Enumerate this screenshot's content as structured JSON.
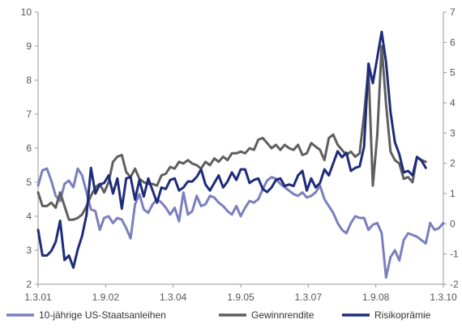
{
  "chart_data": {
    "type": "line",
    "title": "",
    "xlabel": "",
    "ylabel_left": "",
    "ylabel_right": "",
    "x_ticks": [
      "1.3.01",
      "1.9.02",
      "1.3.04",
      "1.9.05",
      "1.3.07",
      "1.9.08",
      "1.3.10"
    ],
    "left_axis": {
      "min": 2,
      "max": 10,
      "ticks": [
        2,
        3,
        4,
        5,
        6,
        7,
        8,
        9,
        10
      ]
    },
    "right_axis": {
      "min": -2,
      "max": 7,
      "ticks_shown": [
        "-2",
        "-1",
        "0",
        "1",
        "2",
        "3",
        "4",
        "5",
        "6",
        "7"
      ]
    },
    "grid": false,
    "legend_position": "bottom",
    "series": [
      {
        "name": "10-jährige US-Staatsanleihen",
        "axis": "left",
        "color": "#7b7fbd",
        "points": [
          [
            0,
            4.9
          ],
          [
            1,
            5.35
          ],
          [
            2,
            5.4
          ],
          [
            3,
            5.05
          ],
          [
            4,
            4.6
          ],
          [
            5,
            4.45
          ],
          [
            6,
            4.95
          ],
          [
            7,
            5.05
          ],
          [
            8,
            4.85
          ],
          [
            9,
            5.4
          ],
          [
            10,
            5.2
          ],
          [
            11,
            4.7
          ],
          [
            12,
            4.2
          ],
          [
            13,
            4.15
          ],
          [
            14,
            3.6
          ],
          [
            15,
            3.95
          ],
          [
            16,
            4.0
          ],
          [
            17,
            3.8
          ],
          [
            18,
            3.95
          ],
          [
            19,
            3.9
          ],
          [
            20,
            3.65
          ],
          [
            21,
            3.35
          ],
          [
            22,
            4.35
          ],
          [
            23,
            4.65
          ],
          [
            24,
            4.2
          ],
          [
            25,
            4.1
          ],
          [
            26,
            4.35
          ],
          [
            27,
            4.5
          ],
          [
            28,
            4.4
          ],
          [
            29,
            4.25
          ],
          [
            30,
            4.05
          ],
          [
            31,
            4.25
          ],
          [
            32,
            3.85
          ],
          [
            33,
            4.7
          ],
          [
            34,
            4.05
          ],
          [
            35,
            4.15
          ],
          [
            36,
            4.6
          ],
          [
            37,
            4.3
          ],
          [
            38,
            4.35
          ],
          [
            39,
            4.6
          ],
          [
            40,
            4.55
          ],
          [
            41,
            4.4
          ],
          [
            42,
            4.3
          ],
          [
            43,
            4.15
          ],
          [
            44,
            4.05
          ],
          [
            45,
            4.3
          ],
          [
            46,
            4.0
          ],
          [
            47,
            4.25
          ],
          [
            48,
            4.45
          ],
          [
            49,
            4.4
          ],
          [
            50,
            4.5
          ],
          [
            51,
            4.8
          ],
          [
            52,
            5.05
          ],
          [
            53,
            5.15
          ],
          [
            54,
            5.1
          ],
          [
            55,
            4.95
          ],
          [
            56,
            4.85
          ],
          [
            57,
            4.75
          ],
          [
            58,
            4.65
          ],
          [
            59,
            4.6
          ],
          [
            60,
            4.7
          ],
          [
            61,
            4.55
          ],
          [
            62,
            4.6
          ],
          [
            63,
            4.7
          ],
          [
            64,
            4.9
          ],
          [
            65,
            4.5
          ],
          [
            66,
            4.3
          ],
          [
            67,
            4.1
          ],
          [
            68,
            3.8
          ],
          [
            69,
            3.6
          ],
          [
            70,
            3.5
          ],
          [
            71,
            3.8
          ],
          [
            72,
            4.0
          ],
          [
            73,
            3.95
          ],
          [
            74,
            3.95
          ],
          [
            75,
            3.6
          ],
          [
            76,
            3.75
          ],
          [
            77,
            3.8
          ],
          [
            78,
            3.5
          ],
          [
            79,
            2.2
          ],
          [
            80,
            2.8
          ],
          [
            81,
            3.0
          ],
          [
            82,
            2.7
          ],
          [
            83,
            3.3
          ],
          [
            84,
            3.5
          ],
          [
            85,
            3.45
          ],
          [
            86,
            3.4
          ],
          [
            87,
            3.3
          ],
          [
            88,
            3.2
          ],
          [
            89,
            3.8
          ],
          [
            90,
            3.6
          ],
          [
            91,
            3.65
          ],
          [
            92,
            3.8
          ]
        ]
      },
      {
        "name": "Gewinnrendite",
        "axis": "left",
        "color": "#5f5f5f",
        "points": [
          [
            0,
            4.7
          ],
          [
            1,
            4.3
          ],
          [
            2,
            4.3
          ],
          [
            3,
            4.4
          ],
          [
            4,
            4.25
          ],
          [
            5,
            4.7
          ],
          [
            6,
            4.3
          ],
          [
            7,
            3.9
          ],
          [
            8,
            3.9
          ],
          [
            9,
            3.95
          ],
          [
            10,
            4.05
          ],
          [
            11,
            4.3
          ],
          [
            12,
            4.6
          ],
          [
            13,
            4.85
          ],
          [
            14,
            4.95
          ],
          [
            15,
            4.7
          ],
          [
            16,
            5.0
          ],
          [
            17,
            5.6
          ],
          [
            18,
            5.75
          ],
          [
            19,
            5.8
          ],
          [
            20,
            5.3
          ],
          [
            21,
            5.15
          ],
          [
            22,
            5.4
          ],
          [
            23,
            5.1
          ],
          [
            24,
            5.0
          ],
          [
            25,
            4.95
          ],
          [
            26,
            4.95
          ],
          [
            27,
            4.9
          ],
          [
            28,
            5.2
          ],
          [
            29,
            5.25
          ],
          [
            30,
            5.45
          ],
          [
            31,
            5.4
          ],
          [
            32,
            5.6
          ],
          [
            33,
            5.55
          ],
          [
            34,
            5.65
          ],
          [
            35,
            5.55
          ],
          [
            36,
            5.5
          ],
          [
            37,
            5.4
          ],
          [
            38,
            5.6
          ],
          [
            39,
            5.5
          ],
          [
            40,
            5.7
          ],
          [
            41,
            5.6
          ],
          [
            42,
            5.75
          ],
          [
            43,
            5.65
          ],
          [
            44,
            5.85
          ],
          [
            45,
            5.85
          ],
          [
            46,
            5.9
          ],
          [
            47,
            5.85
          ],
          [
            48,
            6.0
          ],
          [
            49,
            5.95
          ],
          [
            50,
            6.25
          ],
          [
            51,
            6.3
          ],
          [
            52,
            6.15
          ],
          [
            53,
            6.0
          ],
          [
            54,
            6.1
          ],
          [
            55,
            5.95
          ],
          [
            56,
            6.1
          ],
          [
            57,
            6.0
          ],
          [
            58,
            5.95
          ],
          [
            59,
            6.1
          ],
          [
            60,
            5.8
          ],
          [
            61,
            5.85
          ],
          [
            62,
            6.15
          ],
          [
            63,
            6.05
          ],
          [
            64,
            5.95
          ],
          [
            65,
            5.65
          ],
          [
            66,
            6.3
          ],
          [
            67,
            6.4
          ],
          [
            68,
            6.1
          ],
          [
            69,
            5.95
          ],
          [
            70,
            5.8
          ],
          [
            71,
            5.9
          ],
          [
            72,
            5.75
          ],
          [
            73,
            5.85
          ],
          [
            74,
            7.0
          ],
          [
            75,
            8.35
          ],
          [
            76,
            4.9
          ],
          [
            77,
            6.4
          ],
          [
            78,
            9.0
          ],
          [
            79,
            7.3
          ],
          [
            80,
            5.9
          ],
          [
            81,
            5.65
          ],
          [
            82,
            5.55
          ],
          [
            83,
            5.1
          ],
          [
            84,
            5.15
          ],
          [
            85,
            5.0
          ],
          [
            86,
            5.75
          ],
          [
            87,
            5.65
          ],
          [
            88,
            5.6
          ]
        ]
      },
      {
        "name": "Risikoprämie",
        "axis": "right",
        "color": "#1f2c7a",
        "points": [
          [
            0,
            -0.2
          ],
          [
            1,
            -1.05
          ],
          [
            2,
            -1.05
          ],
          [
            3,
            -0.9
          ],
          [
            4,
            -0.6
          ],
          [
            5,
            0.1
          ],
          [
            6,
            -1.2
          ],
          [
            7,
            -1.05
          ],
          [
            8,
            -1.45
          ],
          [
            9,
            -0.85
          ],
          [
            10,
            -0.4
          ],
          [
            11,
            0.3
          ],
          [
            12,
            1.85
          ],
          [
            13,
            1.0
          ],
          [
            14,
            1.3
          ],
          [
            15,
            1.35
          ],
          [
            16,
            1.6
          ],
          [
            17,
            1.0
          ],
          [
            18,
            1.5
          ],
          [
            19,
            0.5
          ],
          [
            20,
            1.5
          ],
          [
            21,
            1.55
          ],
          [
            22,
            0.8
          ],
          [
            23,
            1.45
          ],
          [
            24,
            0.9
          ],
          [
            25,
            1.5
          ],
          [
            26,
            1.1
          ],
          [
            27,
            0.7
          ],
          [
            28,
            1.2
          ],
          [
            29,
            1.15
          ],
          [
            30,
            1.45
          ],
          [
            31,
            1.5
          ],
          [
            32,
            1.1
          ],
          [
            33,
            1.2
          ],
          [
            34,
            1.4
          ],
          [
            35,
            1.4
          ],
          [
            36,
            1.55
          ],
          [
            37,
            1.8
          ],
          [
            38,
            1.3
          ],
          [
            39,
            1.1
          ],
          [
            40,
            1.35
          ],
          [
            41,
            1.6
          ],
          [
            42,
            1.2
          ],
          [
            43,
            1.4
          ],
          [
            44,
            1.7
          ],
          [
            45,
            1.45
          ],
          [
            46,
            1.8
          ],
          [
            47,
            1.8
          ],
          [
            48,
            1.35
          ],
          [
            49,
            1.45
          ],
          [
            50,
            1.5
          ],
          [
            51,
            1.15
          ],
          [
            52,
            1.05
          ],
          [
            53,
            1.2
          ],
          [
            54,
            1.45
          ],
          [
            55,
            1.5
          ],
          [
            56,
            1.25
          ],
          [
            57,
            1.3
          ],
          [
            58,
            1.25
          ],
          [
            59,
            1.6
          ],
          [
            60,
            1.75
          ],
          [
            61,
            1.1
          ],
          [
            62,
            1.5
          ],
          [
            63,
            1.2
          ],
          [
            64,
            1.35
          ],
          [
            65,
            1.8
          ],
          [
            66,
            1.6
          ],
          [
            67,
            2.0
          ],
          [
            68,
            2.4
          ],
          [
            69,
            2.2
          ],
          [
            70,
            2.35
          ],
          [
            71,
            1.75
          ],
          [
            72,
            1.85
          ],
          [
            73,
            1.9
          ],
          [
            74,
            2.55
          ],
          [
            75,
            5.3
          ],
          [
            76,
            4.65
          ],
          [
            77,
            5.5
          ],
          [
            78,
            6.35
          ],
          [
            79,
            5.35
          ],
          [
            80,
            3.7
          ],
          [
            81,
            2.7
          ],
          [
            82,
            2.3
          ],
          [
            83,
            1.7
          ],
          [
            84,
            1.75
          ],
          [
            85,
            1.6
          ],
          [
            86,
            2.2
          ],
          [
            87,
            2.1
          ],
          [
            88,
            1.85
          ]
        ]
      }
    ]
  }
}
